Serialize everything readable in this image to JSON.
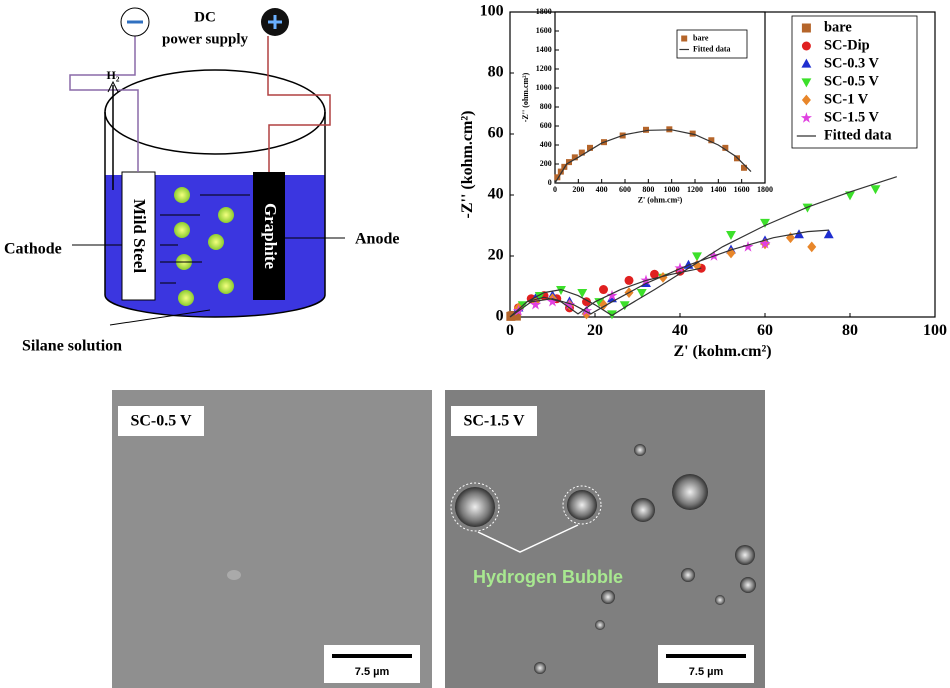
{
  "diagram": {
    "supply_line1": "DC",
    "supply_line2": "power supply",
    "gas": "H₂",
    "cathode_electrode": "Mild Steel",
    "anode_electrode": "Graphite",
    "cathode": "Cathode",
    "anode": "Anode",
    "solution": "Silane solution"
  },
  "chart_data": [
    {
      "type": "scatter",
      "xlabel": "Z' (kohm.cm²)",
      "ylabel": "-Z'' (kohm.cm²)",
      "xlim": [
        0,
        100
      ],
      "ylim": [
        0,
        100
      ],
      "xticks": [
        0,
        20,
        40,
        60,
        80,
        100
      ],
      "yticks": [
        0,
        20,
        40,
        60,
        80,
        100
      ],
      "legend": "upper right",
      "series": [
        {
          "name": "bare",
          "color": "#b5652a",
          "marker": "square",
          "x": [
            0.2,
            0.5,
            1,
            1.5
          ],
          "values": [
            0.2,
            0.4,
            0.5,
            0.3
          ]
        },
        {
          "name": "SC-Dip",
          "color": "#e02020",
          "marker": "circle",
          "x": [
            2,
            5,
            8,
            11,
            14,
            18,
            22,
            28,
            34,
            40,
            45
          ],
          "values": [
            3,
            6,
            7,
            6,
            3,
            5,
            9,
            12,
            14,
            15,
            16
          ]
        },
        {
          "name": "SC-0.3 V",
          "color": "#1f2fd0",
          "marker": "triangle",
          "x": [
            2,
            6,
            10,
            14,
            18,
            24,
            32,
            42,
            52,
            60,
            68,
            75
          ],
          "values": [
            3,
            6,
            7,
            5,
            2,
            6,
            11,
            17,
            22,
            25,
            27,
            27
          ]
        },
        {
          "name": "SC-0.5 V",
          "color": "#3ce02a",
          "marker": "triangle-down",
          "x": [
            3,
            7,
            12,
            17,
            21,
            24,
            27,
            31,
            36,
            44,
            52,
            60,
            70,
            80,
            86
          ],
          "values": [
            4,
            7,
            9,
            8,
            5,
            1,
            4,
            8,
            13,
            20,
            27,
            31,
            36,
            40,
            42
          ]
        },
        {
          "name": "SC-1 V",
          "color": "#e8862a",
          "marker": "diamond",
          "x": [
            2,
            6,
            10,
            14,
            18,
            22,
            28,
            36,
            44,
            52,
            60,
            66,
            71
          ],
          "values": [
            3,
            5,
            6,
            4,
            1,
            4,
            8,
            13,
            17,
            21,
            24,
            26,
            23
          ]
        },
        {
          "name": "SC-1.5 V",
          "color": "#e040e0",
          "marker": "star",
          "x": [
            2,
            6,
            10,
            14,
            18,
            24,
            32,
            40,
            48,
            56,
            60
          ],
          "values": [
            2,
            4,
            5,
            4,
            2,
            7,
            12,
            16,
            20,
            23,
            24
          ]
        },
        {
          "name": "Fitted data",
          "color": "#333333",
          "style": "line",
          "x": [
            0,
            4,
            8,
            12,
            16,
            20,
            24,
            28,
            34,
            42,
            50,
            60,
            70,
            80,
            91,
            null,
            0,
            5,
            10,
            15,
            19,
            24,
            32,
            42,
            52,
            62,
            70,
            75,
            null,
            0,
            4,
            8,
            12,
            16,
            20,
            26,
            32,
            38,
            45
          ],
          "values": [
            0,
            5,
            8,
            9,
            7,
            4,
            0.5,
            4,
            9,
            16,
            23,
            30,
            36,
            41,
            46,
            null,
            0,
            5,
            6,
            4,
            1,
            5,
            11,
            17,
            22,
            26,
            28,
            28.5,
            null,
            0,
            5,
            6.5,
            5,
            1,
            5,
            9,
            12,
            14,
            16
          ]
        }
      ]
    },
    {
      "type": "scatter",
      "xlabel": "Z' (ohm.cm²)",
      "ylabel": "-Z'' (ohm.cm²)",
      "xlim": [
        0,
        1800
      ],
      "ylim": [
        0,
        1800
      ],
      "xticks": [
        0,
        200,
        400,
        600,
        800,
        1000,
        1200,
        1400,
        1600,
        1800
      ],
      "yticks": [
        0,
        200,
        400,
        600,
        800,
        1000,
        1200,
        1400,
        1600,
        1800
      ],
      "legend": "upper right",
      "series": [
        {
          "name": "bare",
          "color": "#b5652a",
          "marker": "square",
          "x": [
            20,
            50,
            80,
            120,
            170,
            230,
            300,
            420,
            580,
            780,
            980,
            1180,
            1340,
            1460,
            1560,
            1620
          ],
          "values": [
            60,
            120,
            170,
            220,
            270,
            320,
            370,
            430,
            500,
            560,
            565,
            520,
            450,
            370,
            260,
            160
          ]
        },
        {
          "name": "Fitted data",
          "color": "#333333",
          "style": "line",
          "x": [
            0,
            100,
            200,
            400,
            600,
            800,
            1000,
            1200,
            1400,
            1550,
            1680
          ],
          "values": [
            0,
            200,
            270,
            420,
            510,
            555,
            560,
            510,
            400,
            280,
            120
          ]
        }
      ]
    }
  ],
  "micrographs": [
    {
      "label": "SC-0.5 V",
      "scale": "7.5 µm"
    },
    {
      "label": "SC-1.5 V",
      "scale": "7.5 µm",
      "annotation": "Hydrogen Bubble"
    }
  ]
}
